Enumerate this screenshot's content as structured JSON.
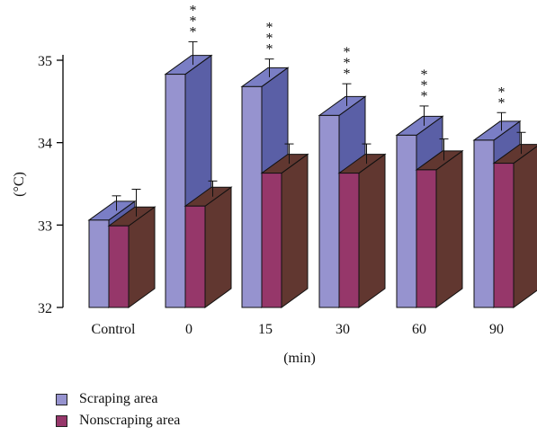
{
  "chart_data": {
    "type": "bar",
    "title": "",
    "xlabel": "(min)",
    "ylabel": "(°C)",
    "ylim": [
      32,
      35
    ],
    "yticks": [
      "32",
      "33",
      "34",
      "35"
    ],
    "categories": [
      "Control",
      "0",
      "15",
      "30",
      "60",
      "90"
    ],
    "series": [
      {
        "name": "Scraping area",
        "values": [
          33.06,
          34.83,
          34.68,
          34.33,
          34.09,
          34.03
        ],
        "errors": [
          0.18,
          0.28,
          0.22,
          0.27,
          0.24,
          0.22
        ],
        "significance": [
          "",
          "***",
          "***",
          "***",
          "***",
          "**"
        ],
        "color": "#9693cf",
        "side_color": "#5a5fa6",
        "top_color": "#7a7ec5"
      },
      {
        "name": "Nonscraping area",
        "values": [
          32.99,
          33.23,
          33.63,
          33.63,
          33.67,
          33.75
        ],
        "errors": [
          0.33,
          0.19,
          0.24,
          0.24,
          0.26,
          0.26
        ],
        "significance": [
          "",
          "",
          "",
          "",
          "",
          ""
        ],
        "color": "#96376a",
        "side_color": "#613730",
        "top_color": "#613730"
      }
    ],
    "grid": false,
    "legend_position": "bottom-left"
  }
}
